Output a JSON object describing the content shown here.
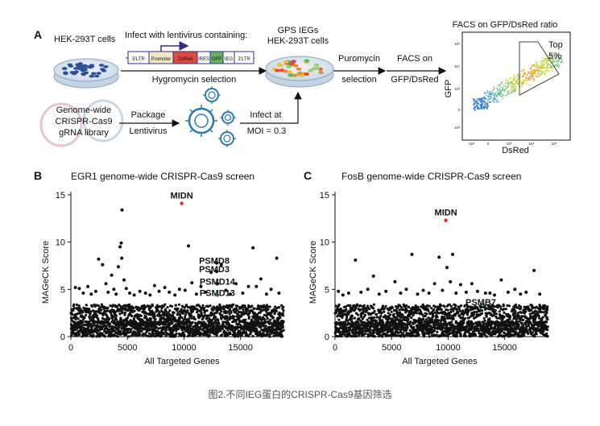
{
  "panel_a": {
    "label": "A",
    "hek_label": "HEK-293T cells",
    "infect_text": "Infect with lentivirus containing:",
    "construct": [
      "5'LTR",
      "Promoter",
      "DsRed",
      "IRES",
      "GFP",
      "IEG",
      "3'LTR"
    ],
    "hygro_text": "Hygromycin selection",
    "gps_line1": "GPS IEGs",
    "gps_line2": "HEK-293T cells",
    "puro_line1": "Puromycin",
    "puro_line2": "selection",
    "facs_line1": "FACS on",
    "facs_line2": "GFP/DsRed",
    "library_line1": "Genome-wide",
    "library_line2": "CRISPR-Cas9",
    "library_line3": "gRNA library",
    "package_line1": "Package",
    "package_line2": "Lentivirus",
    "infect_at_line1": "Infect at",
    "infect_at_line2": "MOI = 0.3",
    "facs_title": "FACS on GFP/DsRed ratio",
    "facs_ylabel": "GFP",
    "facs_xlabel": "DsRed",
    "gate_line1": "Top",
    "gate_line2": "5%",
    "facs_yticks": [
      "10⁵",
      "10⁴",
      "10³",
      "0",
      "-10³"
    ],
    "facs_xticks": [
      "-10³",
      "0",
      "10³",
      "10⁴",
      "10⁵"
    ]
  },
  "chart_data": [
    {
      "panel": "B",
      "type": "scatter",
      "title": "EGR1 genome-wide CRISPR-Cas9 screen",
      "xlabel": "All Targeted Genes",
      "ylabel": "MAGeCK Score",
      "xlim": [
        0,
        18800
      ],
      "ylim": [
        0,
        15
      ],
      "xticks": [
        0,
        5000,
        10000,
        15000
      ],
      "yticks": [
        0,
        5,
        10,
        15
      ],
      "highlighted": [
        {
          "label": "MIDN",
          "x": 9800,
          "y": 14.1,
          "color": "#e03030"
        },
        {
          "label": "PSMD8",
          "x": 12900,
          "y": 7.8,
          "color": "#111111"
        },
        {
          "label": "PSMD3",
          "x": 12900,
          "y": 6.9,
          "color": "#111111"
        },
        {
          "label": "PSMD14",
          "x": 12950,
          "y": 5.6,
          "color": "#111111"
        },
        {
          "label": "PSMD13",
          "x": 12950,
          "y": 4.4,
          "color": "#1e9e6e"
        }
      ],
      "points": [
        [
          400,
          5.2
        ],
        [
          750,
          5.1
        ],
        [
          1100,
          4.6
        ],
        [
          1500,
          5.3
        ],
        [
          1800,
          4.5
        ],
        [
          2200,
          4.8
        ],
        [
          2450,
          8.2
        ],
        [
          2800,
          7.6
        ],
        [
          3100,
          5.6
        ],
        [
          3300,
          4.7
        ],
        [
          3600,
          6.5
        ],
        [
          3800,
          5.0
        ],
        [
          4000,
          4.5
        ],
        [
          4200,
          7.4
        ],
        [
          4350,
          9.5
        ],
        [
          4450,
          9.9
        ],
        [
          4520,
          13.4
        ],
        [
          4500,
          8.3
        ],
        [
          4700,
          6.0
        ],
        [
          4900,
          5.1
        ],
        [
          5200,
          4.6
        ],
        [
          5600,
          4.4
        ],
        [
          6100,
          4.8
        ],
        [
          6600,
          4.6
        ],
        [
          7000,
          4.4
        ],
        [
          7400,
          5.4
        ],
        [
          7800,
          4.8
        ],
        [
          8300,
          5.2
        ],
        [
          8700,
          4.7
        ],
        [
          9200,
          4.4
        ],
        [
          9600,
          5.0
        ],
        [
          10100,
          4.9
        ],
        [
          10400,
          9.6
        ],
        [
          10700,
          5.7
        ],
        [
          11100,
          4.5
        ],
        [
          11500,
          5.3
        ],
        [
          11900,
          4.7
        ],
        [
          12400,
          6.8
        ],
        [
          13300,
          7.6
        ],
        [
          13700,
          4.9
        ],
        [
          14100,
          4.5
        ],
        [
          14600,
          5.6
        ],
        [
          15200,
          4.6
        ],
        [
          15700,
          5.3
        ],
        [
          16100,
          9.4
        ],
        [
          16400,
          5.3
        ],
        [
          16800,
          6.1
        ],
        [
          17300,
          4.5
        ],
        [
          17700,
          5.0
        ],
        [
          18200,
          8.3
        ],
        [
          18400,
          4.6
        ]
      ]
    },
    {
      "panel": "C",
      "type": "scatter",
      "title": "FosB genome-wide CRISPR-Cas9 screen",
      "xlabel": "All Targeted Genes",
      "ylabel": "MAGeCK Score",
      "xlim": [
        0,
        18800
      ],
      "ylim": [
        0,
        15
      ],
      "xticks": [
        0,
        5000,
        10000,
        15000
      ],
      "yticks": [
        0,
        5,
        10,
        15
      ],
      "highlighted": [
        {
          "label": "MIDN",
          "x": 9800,
          "y": 12.3,
          "color": "#e03030"
        },
        {
          "label": "PSMB7",
          "x": 13100,
          "y": 3.4,
          "color": "#1e9e6e"
        }
      ],
      "points": [
        [
          300,
          4.8
        ],
        [
          700,
          4.4
        ],
        [
          1200,
          4.6
        ],
        [
          1800,
          8.1
        ],
        [
          2300,
          4.7
        ],
        [
          2900,
          5.0
        ],
        [
          3400,
          6.4
        ],
        [
          3900,
          4.5
        ],
        [
          4500,
          4.8
        ],
        [
          5300,
          5.8
        ],
        [
          5800,
          4.6
        ],
        [
          6300,
          5.0
        ],
        [
          6800,
          8.7
        ],
        [
          7300,
          4.5
        ],
        [
          7800,
          4.9
        ],
        [
          8300,
          4.6
        ],
        [
          8800,
          5.6
        ],
        [
          9200,
          8.4
        ],
        [
          9500,
          4.9
        ],
        [
          9900,
          7.3
        ],
        [
          10200,
          5.8
        ],
        [
          10400,
          8.7
        ],
        [
          10700,
          4.6
        ],
        [
          11100,
          5.5
        ],
        [
          11600,
          4.7
        ],
        [
          12100,
          5.6
        ],
        [
          12600,
          4.8
        ],
        [
          13300,
          4.6
        ],
        [
          13700,
          4.6
        ],
        [
          14100,
          4.4
        ],
        [
          14700,
          6.0
        ],
        [
          15300,
          4.7
        ],
        [
          15900,
          5.0
        ],
        [
          16400,
          4.5
        ],
        [
          16900,
          4.7
        ],
        [
          17600,
          7.0
        ],
        [
          18100,
          4.5
        ]
      ]
    }
  ],
  "caption": "图2.不同IEG蛋白的CRISPR-Cas9基因筛选"
}
